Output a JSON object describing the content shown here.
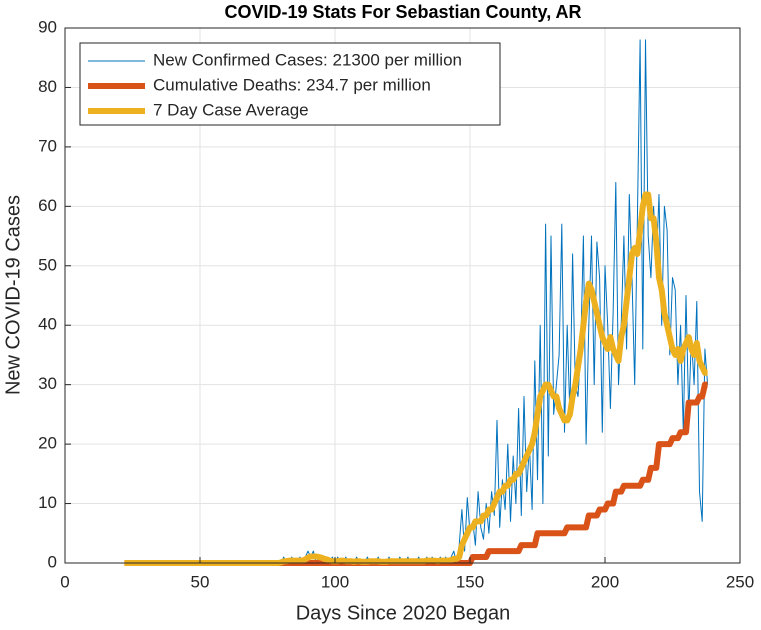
{
  "chart_data": {
    "type": "line",
    "title": "COVID-19 Stats For Sebastian County, AR",
    "xlabel": "Days Since 2020 Began",
    "ylabel": "New COVID-19 Cases",
    "xlim": [
      0,
      250
    ],
    "xticks": [
      0,
      50,
      100,
      150,
      200,
      250
    ],
    "ylim": [
      0,
      90
    ],
    "yticks": [
      0,
      10,
      20,
      30,
      40,
      50,
      60,
      70,
      80,
      90
    ],
    "grid": true,
    "legend": "upper left",
    "x": [
      22,
      23,
      24,
      25,
      26,
      27,
      28,
      29,
      30,
      31,
      32,
      33,
      34,
      35,
      36,
      37,
      38,
      39,
      40,
      41,
      42,
      43,
      44,
      45,
      46,
      47,
      48,
      49,
      50,
      51,
      52,
      53,
      54,
      55,
      56,
      57,
      58,
      59,
      60,
      61,
      62,
      63,
      64,
      65,
      66,
      67,
      68,
      69,
      70,
      71,
      72,
      73,
      74,
      75,
      76,
      77,
      78,
      79,
      80,
      81,
      82,
      83,
      84,
      85,
      86,
      87,
      88,
      89,
      90,
      91,
      92,
      93,
      94,
      95,
      96,
      97,
      98,
      99,
      100,
      101,
      102,
      103,
      104,
      105,
      106,
      107,
      108,
      109,
      110,
      111,
      112,
      113,
      114,
      115,
      116,
      117,
      118,
      119,
      120,
      121,
      122,
      123,
      124,
      125,
      126,
      127,
      128,
      129,
      130,
      131,
      132,
      133,
      134,
      135,
      136,
      137,
      138,
      139,
      140,
      141,
      142,
      143,
      144,
      145,
      146,
      147,
      148,
      149,
      150,
      151,
      152,
      153,
      154,
      155,
      156,
      157,
      158,
      159,
      160,
      161,
      162,
      163,
      164,
      165,
      166,
      167,
      168,
      169,
      170,
      171,
      172,
      173,
      174,
      175,
      176,
      177,
      178,
      179,
      180,
      181,
      182,
      183,
      184,
      185,
      186,
      187,
      188,
      189,
      190,
      191,
      192,
      193,
      194,
      195,
      196,
      197,
      198,
      199,
      200,
      201,
      202,
      203,
      204,
      205,
      206,
      207,
      208,
      209,
      210,
      211,
      212,
      213,
      214,
      215,
      216,
      217,
      218,
      219,
      220,
      221,
      222,
      223,
      224,
      225,
      226,
      227,
      228,
      229,
      230,
      231,
      232,
      233,
      234,
      235,
      236,
      237,
      238
    ],
    "series": [
      {
        "name": "New Confirmed Cases: 21300 per million",
        "color": "#0072BD",
        "values": [
          0,
          0,
          0,
          0,
          0,
          0,
          0,
          0,
          0,
          0,
          0,
          0,
          0,
          0,
          0,
          0,
          0,
          0,
          0,
          0,
          0,
          0,
          0,
          0,
          0,
          0,
          0,
          0,
          0,
          0,
          0,
          0,
          0,
          0,
          0,
          0,
          0,
          0,
          0,
          0,
          0,
          0,
          0,
          0,
          0,
          0,
          0,
          0,
          0,
          0,
          0,
          0,
          0,
          0,
          0,
          0,
          0,
          0,
          0,
          1,
          0,
          0,
          1,
          0,
          0,
          1,
          0,
          1,
          2,
          1,
          2,
          0,
          1,
          0,
          1,
          0,
          0,
          1,
          0,
          1,
          0,
          0,
          1,
          0,
          0,
          0,
          1,
          0,
          0,
          0,
          1,
          0,
          0,
          0,
          1,
          0,
          0,
          0,
          1,
          0,
          0,
          0,
          1,
          0,
          0,
          1,
          0,
          0,
          0,
          1,
          0,
          0,
          1,
          0,
          1,
          0,
          0,
          1,
          0,
          1,
          0,
          1,
          2,
          0,
          3,
          9,
          2,
          11,
          5,
          7,
          3,
          12,
          6,
          4,
          10,
          5,
          12,
          8,
          24,
          6,
          14,
          9,
          20,
          7,
          18,
          10,
          26,
          8,
          28,
          12,
          20,
          9,
          34,
          14,
          40,
          10,
          57,
          18,
          55,
          25,
          30,
          35,
          57,
          22,
          40,
          25,
          52,
          30,
          28,
          36,
          55,
          20,
          40,
          55,
          30,
          54,
          48,
          22,
          50,
          40,
          26,
          42,
          64,
          30,
          40,
          55,
          36,
          62,
          48,
          30,
          58,
          88,
          36,
          88,
          55,
          48,
          60,
          50,
          62,
          40,
          60,
          56,
          35,
          48,
          46,
          30,
          40,
          22,
          45,
          25,
          38,
          30,
          44,
          12,
          7,
          36,
          30
        ]
      },
      {
        "name": "Cumulative Deaths: 234.7 per million",
        "color": "#D95319",
        "values": [
          0,
          0,
          0,
          0,
          0,
          0,
          0,
          0,
          0,
          0,
          0,
          0,
          0,
          0,
          0,
          0,
          0,
          0,
          0,
          0,
          0,
          0,
          0,
          0,
          0,
          0,
          0,
          0,
          0,
          0,
          0,
          0,
          0,
          0,
          0,
          0,
          0,
          0,
          0,
          0,
          0,
          0,
          0,
          0,
          0,
          0,
          0,
          0,
          0,
          0,
          0,
          0,
          0,
          0,
          0,
          0,
          0,
          0,
          0,
          0,
          0,
          0,
          0,
          0,
          0,
          0,
          0,
          0,
          0,
          0,
          0,
          0,
          0,
          0,
          0,
          0,
          0,
          0,
          0,
          0,
          0,
          0,
          0,
          0,
          0,
          0,
          0,
          0,
          0,
          0,
          0,
          0,
          0,
          0,
          0,
          0,
          0,
          0,
          0,
          0,
          0,
          0,
          0,
          0,
          0,
          0,
          0,
          0,
          0,
          0,
          0,
          0,
          0,
          0,
          0,
          0,
          0,
          0,
          0,
          0,
          0,
          0,
          0,
          0,
          0,
          0,
          0,
          0,
          0,
          1,
          1,
          1,
          1,
          1,
          1,
          2,
          2,
          2,
          2,
          2,
          2,
          2,
          2,
          2,
          2,
          2,
          2,
          3,
          3,
          3,
          3,
          3,
          3,
          5,
          5,
          5,
          5,
          5,
          5,
          5,
          5,
          5,
          5,
          5,
          6,
          6,
          6,
          6,
          6,
          6,
          6,
          6,
          8,
          8,
          8,
          8,
          9,
          9,
          9,
          10,
          10,
          10,
          12,
          12,
          12,
          13,
          13,
          13,
          13,
          13,
          13,
          13,
          14,
          14,
          14,
          16,
          16,
          16,
          20,
          20,
          20,
          20,
          20,
          21,
          21,
          21,
          22,
          22,
          22,
          27,
          27,
          27,
          27,
          28,
          28,
          30,
          30
        ]
      },
      {
        "name": "7 Day Case Average",
        "color": "#EDB120",
        "values": [
          0,
          0,
          0,
          0,
          0,
          0,
          0,
          0,
          0,
          0,
          0,
          0,
          0,
          0,
          0,
          0,
          0,
          0,
          0,
          0,
          0,
          0,
          0,
          0,
          0,
          0,
          0,
          0,
          0,
          0,
          0,
          0,
          0,
          0,
          0,
          0,
          0,
          0,
          0,
          0,
          0,
          0,
          0,
          0,
          0,
          0,
          0,
          0,
          0,
          0,
          0,
          0,
          0,
          0,
          0,
          0,
          0,
          0,
          0.1,
          0.3,
          0.3,
          0.4,
          0.4,
          0.4,
          0.4,
          0.4,
          0.4,
          0.6,
          0.9,
          1.1,
          1.1,
          1.1,
          1,
          0.9,
          0.7,
          0.6,
          0.4,
          0.3,
          0.3,
          0.3,
          0.4,
          0.4,
          0.3,
          0.3,
          0.3,
          0.2,
          0.3,
          0.3,
          0.2,
          0.2,
          0.2,
          0.3,
          0.3,
          0.3,
          0.3,
          0.2,
          0.2,
          0.2,
          0.3,
          0.3,
          0.3,
          0.3,
          0.3,
          0.3,
          0.3,
          0.3,
          0.3,
          0.3,
          0.3,
          0.3,
          0.3,
          0.3,
          0.4,
          0.4,
          0.4,
          0.4,
          0.3,
          0.4,
          0.4,
          0.4,
          0.4,
          0.5,
          0.7,
          0.7,
          1,
          3,
          4,
          5,
          6,
          6,
          7,
          7,
          7,
          8,
          8,
          9,
          9,
          10,
          11,
          12,
          12,
          13,
          13,
          14,
          14,
          15,
          15,
          16,
          17,
          18,
          19,
          20,
          22,
          25,
          28,
          29,
          30,
          30,
          29,
          28,
          28,
          26,
          25,
          24,
          24,
          25,
          28,
          30,
          33,
          36,
          40,
          44,
          47,
          46,
          44,
          42,
          40,
          38,
          37,
          36,
          38,
          36,
          35,
          34,
          38,
          40,
          44,
          48,
          52,
          53,
          52,
          56,
          60,
          62,
          62,
          58,
          58,
          54,
          48,
          46,
          42,
          40,
          38,
          36,
          35,
          36,
          34,
          36,
          37,
          38,
          36,
          35,
          37,
          34,
          33,
          32,
          32
        ]
      }
    ]
  }
}
